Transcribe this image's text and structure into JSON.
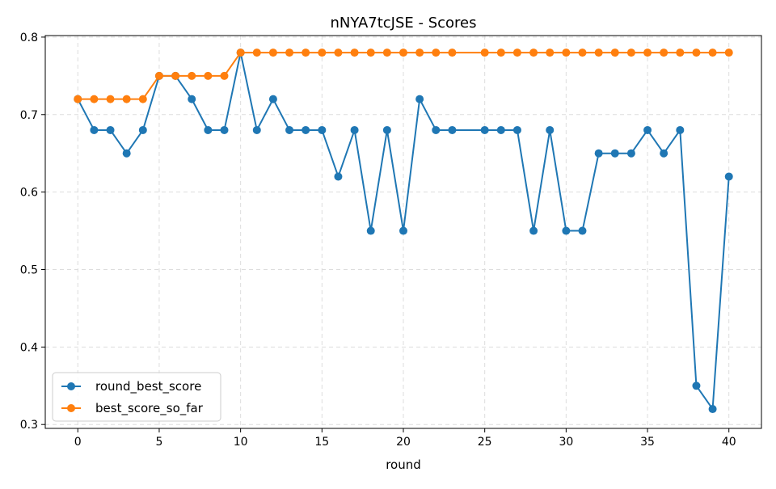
{
  "chart_data": {
    "type": "line",
    "title": "nNYA7tcJSE - Scores",
    "xlabel": "round",
    "ylabel": "",
    "xlim": [
      -2,
      42
    ],
    "ylim": [
      0.295,
      0.802
    ],
    "xticks": [
      0,
      5,
      10,
      15,
      20,
      25,
      30,
      35,
      40
    ],
    "xtick_labels": [
      "0",
      "5",
      "10",
      "15",
      "20",
      "25",
      "30",
      "35",
      "40"
    ],
    "yticks": [
      0.3,
      0.4,
      0.5,
      0.6,
      0.7,
      0.8
    ],
    "ytick_labels": [
      "0.3",
      "0.4",
      "0.5",
      "0.6",
      "0.7",
      "0.8"
    ],
    "grid": true,
    "legend_position": "lower-left",
    "series": [
      {
        "name": "round_best_score",
        "color": "#1f77b4",
        "marker": "circle",
        "x": [
          0,
          1,
          2,
          3,
          4,
          5,
          6,
          7,
          8,
          9,
          10,
          11,
          12,
          13,
          14,
          15,
          16,
          17,
          18,
          19,
          20,
          21,
          22,
          23,
          25,
          26,
          27,
          28,
          29,
          30,
          31,
          32,
          33,
          34,
          35,
          36,
          37,
          38,
          39,
          40
        ],
        "values": [
          0.72,
          0.68,
          0.68,
          0.65,
          0.68,
          0.75,
          0.75,
          0.72,
          0.68,
          0.68,
          0.78,
          0.68,
          0.72,
          0.68,
          0.68,
          0.68,
          0.62,
          0.68,
          0.55,
          0.68,
          0.55,
          0.72,
          0.68,
          0.68,
          0.68,
          0.68,
          0.68,
          0.55,
          0.68,
          0.55,
          0.55,
          0.65,
          0.65,
          0.65,
          0.68,
          0.65,
          0.68,
          0.35,
          0.32,
          0.62
        ]
      },
      {
        "name": "best_score_so_far",
        "color": "#ff7f0e",
        "marker": "circle",
        "x": [
          0,
          1,
          2,
          3,
          4,
          5,
          6,
          7,
          8,
          9,
          10,
          11,
          12,
          13,
          14,
          15,
          16,
          17,
          18,
          19,
          20,
          21,
          22,
          23,
          25,
          26,
          27,
          28,
          29,
          30,
          31,
          32,
          33,
          34,
          35,
          36,
          37,
          38,
          39,
          40
        ],
        "values": [
          0.72,
          0.72,
          0.72,
          0.72,
          0.72,
          0.75,
          0.75,
          0.75,
          0.75,
          0.75,
          0.78,
          0.78,
          0.78,
          0.78,
          0.78,
          0.78,
          0.78,
          0.78,
          0.78,
          0.78,
          0.78,
          0.78,
          0.78,
          0.78,
          0.78,
          0.78,
          0.78,
          0.78,
          0.78,
          0.78,
          0.78,
          0.78,
          0.78,
          0.78,
          0.78,
          0.78,
          0.78,
          0.78,
          0.78,
          0.78
        ]
      }
    ]
  }
}
